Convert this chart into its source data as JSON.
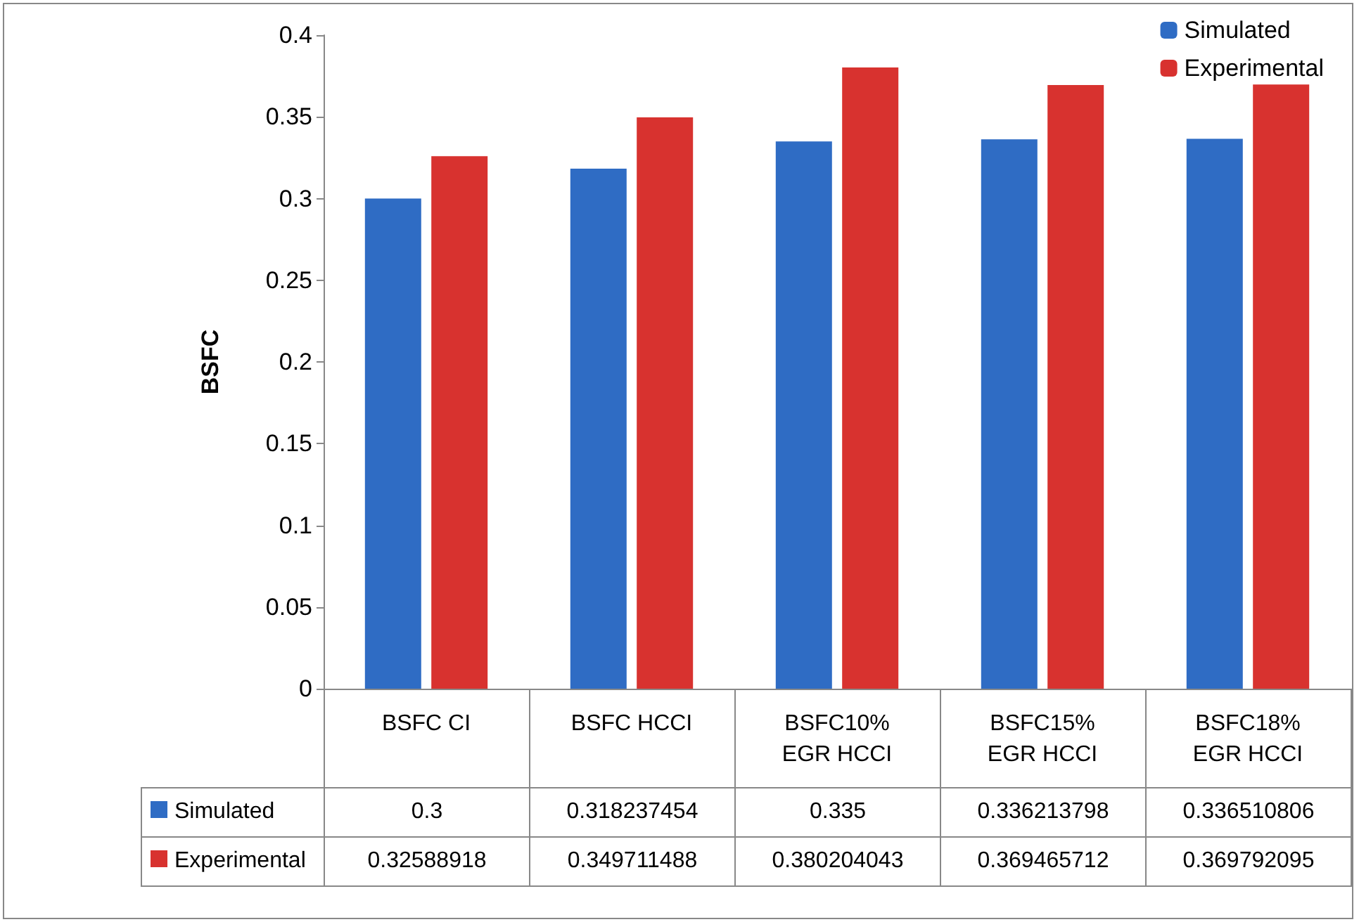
{
  "chart_data": {
    "type": "bar",
    "ylabel": "BSFC",
    "categories": [
      "BSFC CI",
      "BSFC HCCI",
      "BSFC10%\nEGR HCCI",
      "BSFC15%\nEGR HCCI",
      "BSFC18%\nEGR HCCI"
    ],
    "series": [
      {
        "name": "Simulated",
        "color": "#2f6cc4",
        "values": [
          0.3,
          0.318237454,
          0.335,
          0.336213798,
          0.336510806
        ]
      },
      {
        "name": "Experimental",
        "color": "#d8322f",
        "values": [
          0.32588918,
          0.349711488,
          0.380204043,
          0.369465712,
          0.369792095
        ]
      }
    ],
    "ylim": [
      0,
      0.4
    ],
    "yticks": [
      0,
      0.05,
      0.1,
      0.15,
      0.2,
      0.25,
      0.3,
      0.35,
      0.4
    ],
    "grid": false,
    "legend": "top right",
    "data_labels": true
  }
}
